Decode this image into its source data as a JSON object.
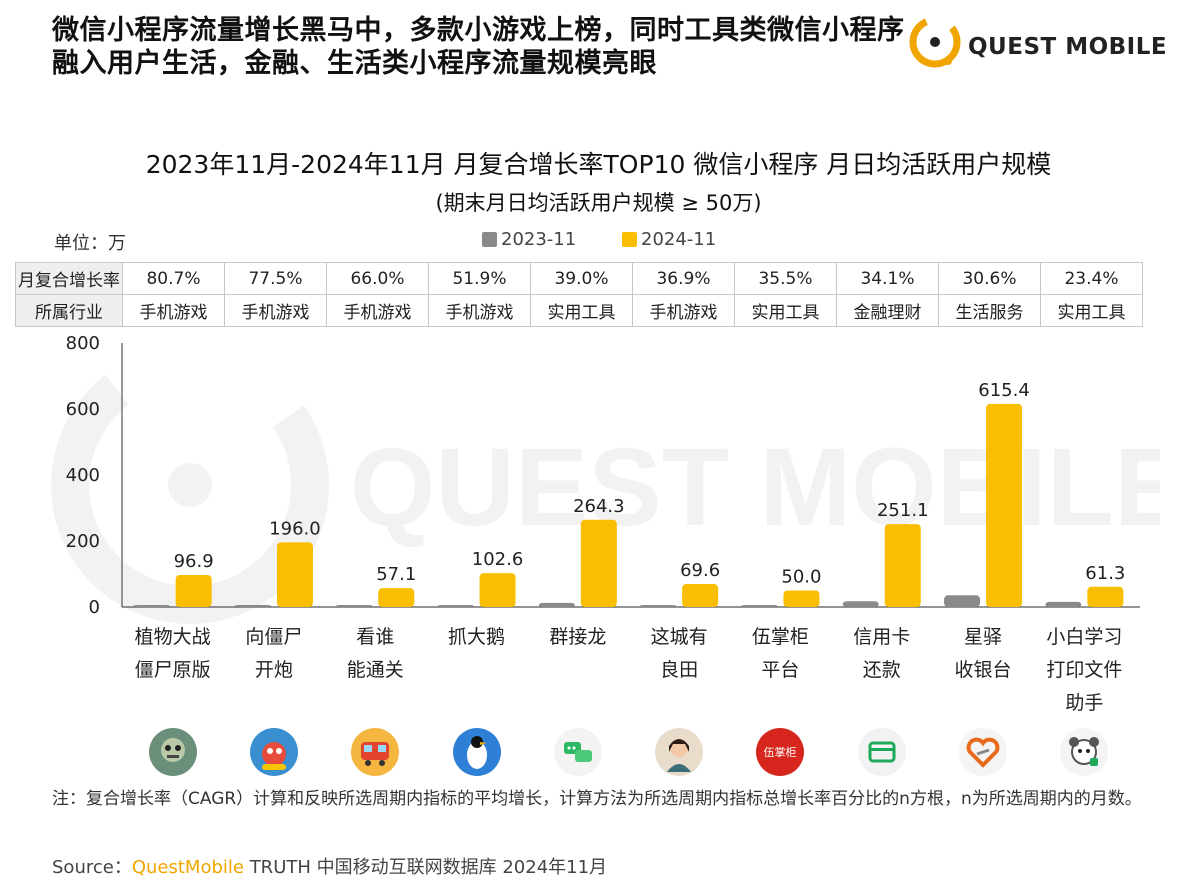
{
  "headline": "微信小程序流量增长黑马中，多款小游戏上榜，同时工具类微信小程序融入用户生活，金融、生活类小程序流量规模亮眼",
  "logo": {
    "text": "QUEST MOBILE",
    "watermark_text": "QUEST MOBILE"
  },
  "colors": {
    "series_2023": "#8a8a8a",
    "series_2024": "#f9be00",
    "brand": "#f0a500",
    "watermark": "#efefef"
  },
  "unit_label": "单位：万",
  "table": {
    "row_headers": [
      "月复合增长率",
      "所属行业"
    ],
    "growth_rates": [
      "80.7%",
      "77.5%",
      "66.0%",
      "51.9%",
      "39.0%",
      "36.9%",
      "35.5%",
      "34.1%",
      "30.6%",
      "23.4%"
    ],
    "industries": [
      "手机游戏",
      "手机游戏",
      "手机游戏",
      "手机游戏",
      "实用工具",
      "手机游戏",
      "实用工具",
      "金融理财",
      "生活服务",
      "实用工具"
    ]
  },
  "app_icons": [
    "zombie-icon",
    "monster-icon",
    "train-icon",
    "penguin-icon",
    "chat-bubbles-icon",
    "portrait-icon",
    "shop-sign-icon",
    "card-icon",
    "heart-logo-icon",
    "dog-icon"
  ],
  "chart_data": {
    "type": "bar",
    "title": "2023年11月-2024年11月 月复合增长率TOP10 微信小程序 月日均活跃用户规模",
    "subtitle": "(期末月日均活跃用户规模 ≥ 50万)",
    "categories": [
      [
        "植物大战",
        "僵尸原版"
      ],
      [
        "向僵尸",
        "开炮"
      ],
      [
        "看谁",
        "能通关"
      ],
      [
        "抓大鹅"
      ],
      [
        "群接龙"
      ],
      [
        "这城有",
        "良田"
      ],
      [
        "伍掌柜",
        "平台"
      ],
      [
        "信用卡",
        "还款"
      ],
      [
        "星驿",
        "收银台"
      ],
      [
        "小白学习",
        "打印文件",
        "助手"
      ]
    ],
    "series": [
      {
        "name": "2023-11",
        "values": [
          3.0,
          3.7,
          3.2,
          4.9,
          12.4,
          3.8,
          2.6,
          17.4,
          35.5,
          15.5
        ]
      },
      {
        "name": "2024-11",
        "values": [
          96.9,
          196.0,
          57.1,
          102.6,
          264.3,
          69.6,
          50.0,
          251.1,
          615.4,
          61.3
        ]
      }
    ],
    "data_labels": [
      "96.9",
      "196.0",
      "57.1",
      "102.6",
      "264.3",
      "69.6",
      "50.0",
      "251.1",
      "615.4",
      "61.3"
    ],
    "yticks": [
      0,
      200,
      400,
      600,
      800
    ],
    "ylim": [
      0,
      800
    ],
    "xlabel": "",
    "ylabel": "",
    "legend_position": "top-center",
    "grid": false
  },
  "note": "注：复合增长率（CAGR）计算和反映所选周期内指标的平均增长，计算方法为所选周期内指标总增长率百分比的n方根，n为所选周期内的月数。",
  "source": {
    "prefix": "Source：",
    "brand": "QuestMobile",
    "rest": " TRUTH 中国移动互联网数据库 2024年11月"
  }
}
